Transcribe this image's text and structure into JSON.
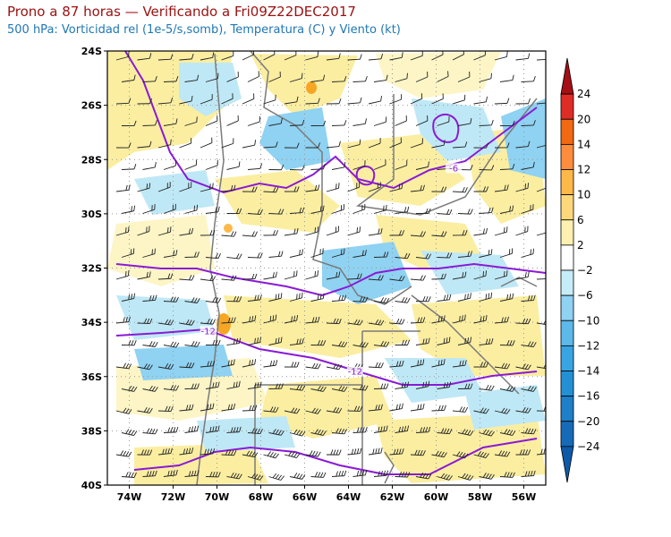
{
  "header": {
    "title": "Prono a 87 horas — Verificando a Fri09Z22DEC2017",
    "subtitle": "500 hPa: Vorticidad rel (1e-5/s,somb), Temperatura (C) y Viento (kt)"
  },
  "map": {
    "lon_range": [
      -75,
      -55
    ],
    "lat_range": [
      -40,
      -24
    ],
    "lat_ticks": [
      {
        "value": -24,
        "label": "24S"
      },
      {
        "value": -26,
        "label": "26S"
      },
      {
        "value": -28,
        "label": "28S"
      },
      {
        "value": -30,
        "label": "30S"
      },
      {
        "value": -32,
        "label": "32S"
      },
      {
        "value": -34,
        "label": "34S"
      },
      {
        "value": -36,
        "label": "36S"
      },
      {
        "value": -38,
        "label": "38S"
      },
      {
        "value": -40,
        "label": "40S"
      }
    ],
    "lon_ticks": [
      {
        "value": -74,
        "label": "74W"
      },
      {
        "value": -72,
        "label": "72W"
      },
      {
        "value": -70,
        "label": "70W"
      },
      {
        "value": -68,
        "label": "68W"
      },
      {
        "value": -66,
        "label": "66W"
      },
      {
        "value": -64,
        "label": "64W"
      },
      {
        "value": -62,
        "label": "62W"
      },
      {
        "value": -60,
        "label": "60W"
      },
      {
        "value": -58,
        "label": "58W"
      },
      {
        "value": -56,
        "label": "56W"
      }
    ],
    "contour_labels": [
      {
        "text": "-6",
        "lon": -59.2,
        "lat": -28.4
      },
      {
        "text": "-12",
        "lon": -70.4,
        "lat": -34.4
      },
      {
        "text": "-12",
        "lon": -63.7,
        "lat": -35.9
      }
    ],
    "colors": {
      "yellow": "#fbeea1",
      "light_yellow": "#fdf5c6",
      "light_blue": "#bfe8f6",
      "blue": "#8fd2f2",
      "orange": "#f6a623",
      "temperature_contour": "#8a1ad6",
      "boundary": "#7a7a7a"
    }
  },
  "colorbar": {
    "labels": [
      "24",
      "20",
      "14",
      "12",
      "10",
      "6",
      "2",
      "−2",
      "−6",
      "−10",
      "−12",
      "−14",
      "−16",
      "−20",
      "−24"
    ],
    "colors": [
      "#a50f15",
      "#de2d26",
      "#f16913",
      "#fd8d3c",
      "#fdb84a",
      "#fdd87a",
      "#fef0b0",
      "#ffffff",
      "#c6ecf7",
      "#8fd2f2",
      "#5cb9ea",
      "#38a5e2",
      "#2390d6",
      "#1f7fc9",
      "#176ab8",
      "#0f5aa8"
    ]
  }
}
